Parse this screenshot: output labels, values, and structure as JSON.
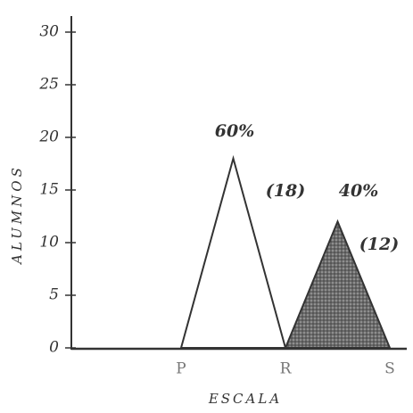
{
  "chart_data": {
    "type": "area",
    "x_label": "ESCALA",
    "y_label": "ALUMNOS",
    "categories": [
      "P",
      null,
      "R",
      null,
      "S"
    ],
    "series": [
      {
        "color": "#333333",
        "filled": false,
        "values": [
          0,
          18,
          0,
          null,
          null
        ],
        "value_labels": [
          null,
          "(18)",
          null,
          null,
          null
        ]
      },
      {
        "color": "#333333",
        "filled": true,
        "values": [
          null,
          null,
          0,
          12,
          0
        ],
        "value_labels": [
          null,
          null,
          null,
          "(12)",
          null
        ]
      }
    ],
    "annotations": [
      "60%",
      "40%"
    ],
    "ylim": [
      0,
      30
    ],
    "yticks": [
      0,
      5,
      10,
      15,
      20,
      25,
      30
    ],
    "grid": false
  }
}
